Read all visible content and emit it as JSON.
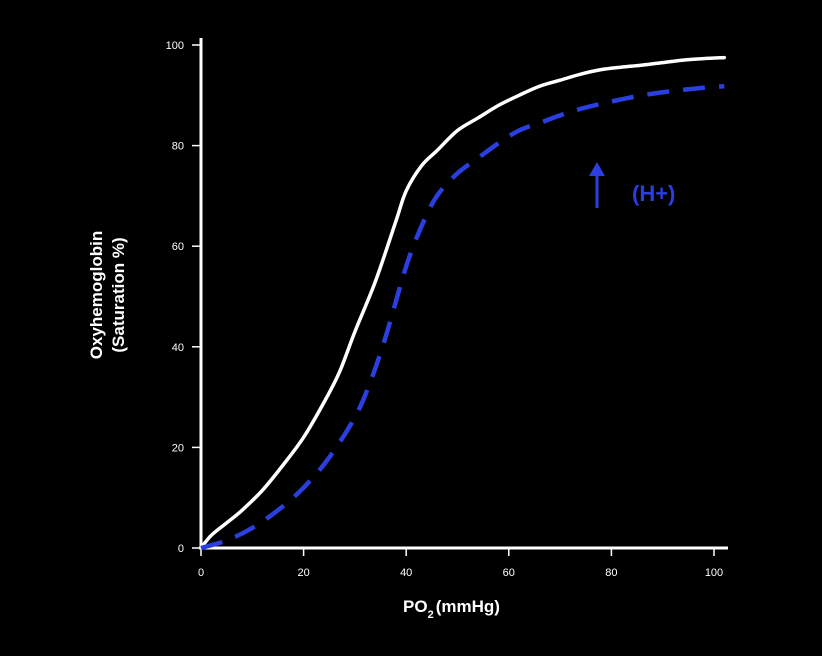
{
  "chart_data": {
    "type": "line",
    "xlabel": "PO",
    "xlabel_subscript": "2",
    "xlabel_unit": "(mmHg)",
    "ylabel_line1": "Oxyhemoglobin",
    "ylabel_line2": "(Saturation %)",
    "xlim": [
      0,
      102
    ],
    "ylim": [
      0,
      102
    ],
    "x_ticks": [
      "0",
      "20",
      "40",
      "60",
      "80",
      "100"
    ],
    "y_ticks": [
      "0",
      "20",
      "40",
      "60",
      "80",
      "100"
    ],
    "grid": false,
    "series": [
      {
        "color": "#ffffff",
        "style": "solid",
        "x": [
          0,
          2,
          5,
          8,
          12,
          16,
          20,
          24,
          27,
          30,
          34,
          38,
          40,
          43,
          46,
          50,
          54,
          58,
          62,
          66,
          70,
          74,
          78,
          82,
          86,
          90,
          94,
          98,
          102
        ],
        "y": [
          0,
          2.5,
          5,
          7.5,
          11.5,
          16.5,
          22,
          29,
          35,
          43,
          53,
          65,
          71,
          76,
          79,
          83,
          85.5,
          88,
          90,
          91.8,
          93,
          94.2,
          95.1,
          95.6,
          96,
          96.5,
          97,
          97.3,
          97.5
        ]
      },
      {
        "color": "#2b3fe0",
        "style": "dashed",
        "x": [
          0,
          5,
          10,
          15,
          20,
          25,
          30,
          33,
          36,
          40,
          43,
          46,
          50,
          54,
          58,
          62,
          66,
          70,
          74,
          78,
          82,
          86,
          90,
          94,
          98,
          102
        ],
        "y": [
          0,
          1.5,
          4,
          7.5,
          12,
          18,
          26,
          33,
          42,
          56,
          64,
          70,
          74.5,
          77.5,
          80.5,
          83,
          84.5,
          86,
          87.3,
          88.3,
          89.2,
          90,
          90.6,
          91.1,
          91.5,
          91.8
        ]
      }
    ],
    "annotations": [
      {
        "text": "(H+)",
        "color": "#2b3fe0",
        "arrow": "up"
      }
    ]
  }
}
